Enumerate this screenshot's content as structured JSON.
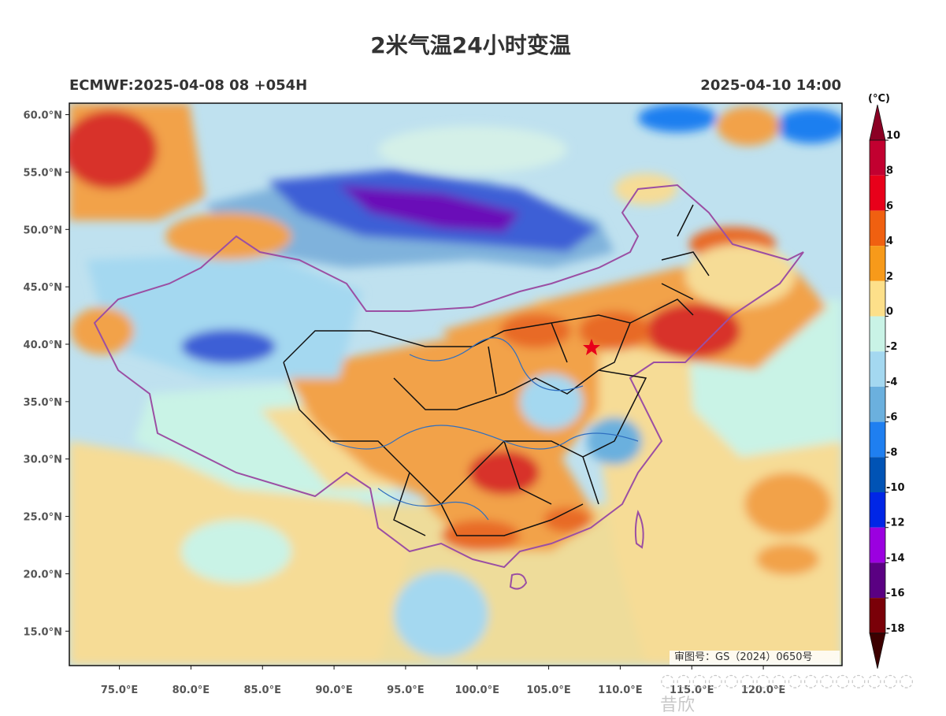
{
  "title": "2米气温24小时变温",
  "subtitle_left": "ECMWF:2025-04-08 08 +054H",
  "subtitle_right": "2025-04-10 14:00",
  "approval_number": "审图号：GS（2024）0650号",
  "watermark_text": "昔欣",
  "colorbar": {
    "unit": "(°C)",
    "labels": [
      "10",
      "8",
      "6",
      "4",
      "2",
      "0",
      "-2",
      "-4",
      "-6",
      "-8",
      "-10",
      "-12",
      "-14",
      "-16",
      "-18"
    ],
    "colors": [
      "#8b0024",
      "#c20030",
      "#e8001a",
      "#f06010",
      "#f79a1a",
      "#fde08a",
      "#c9f3e6",
      "#a4d8f0",
      "#6bb0de",
      "#1f7ff0",
      "#0053b5",
      "#0026e6",
      "#9b00e0",
      "#5a0082",
      "#7a0008",
      "#3d0000"
    ]
  },
  "axes": {
    "lat_ticks": [
      "60.0°N",
      "55.0°N",
      "50.0°N",
      "45.0°N",
      "40.0°N",
      "35.0°N",
      "30.0°N",
      "25.0°N",
      "20.0°N",
      "15.0°N"
    ],
    "lon_ticks": [
      "75.0°E",
      "80.0°E",
      "85.0°E",
      "90.0°E",
      "95.0°E",
      "100.0°E",
      "105.0°E",
      "110.0°E",
      "115.0°E",
      "120.0°E"
    ],
    "lat_range": [
      12,
      61
    ],
    "lon_range": [
      71.5,
      125.5
    ]
  },
  "map_colors": {
    "cold_deep": "#6a0fb8",
    "cold_blue": "#3d5fd6",
    "cool_mid": "#7fb2dc",
    "cool_light": "#bfe1ef",
    "neutral_mint": "#d4f0e8",
    "warm_light": "#f6dc96",
    "warm_orange": "#f2a24a",
    "warm_deep": "#e86a28",
    "hot_red": "#d8322a",
    "land_tan": "#eedc9a",
    "border_black": "#111111",
    "border_purple": "#9b4fa3",
    "river_blue": "#2f6fc0"
  }
}
